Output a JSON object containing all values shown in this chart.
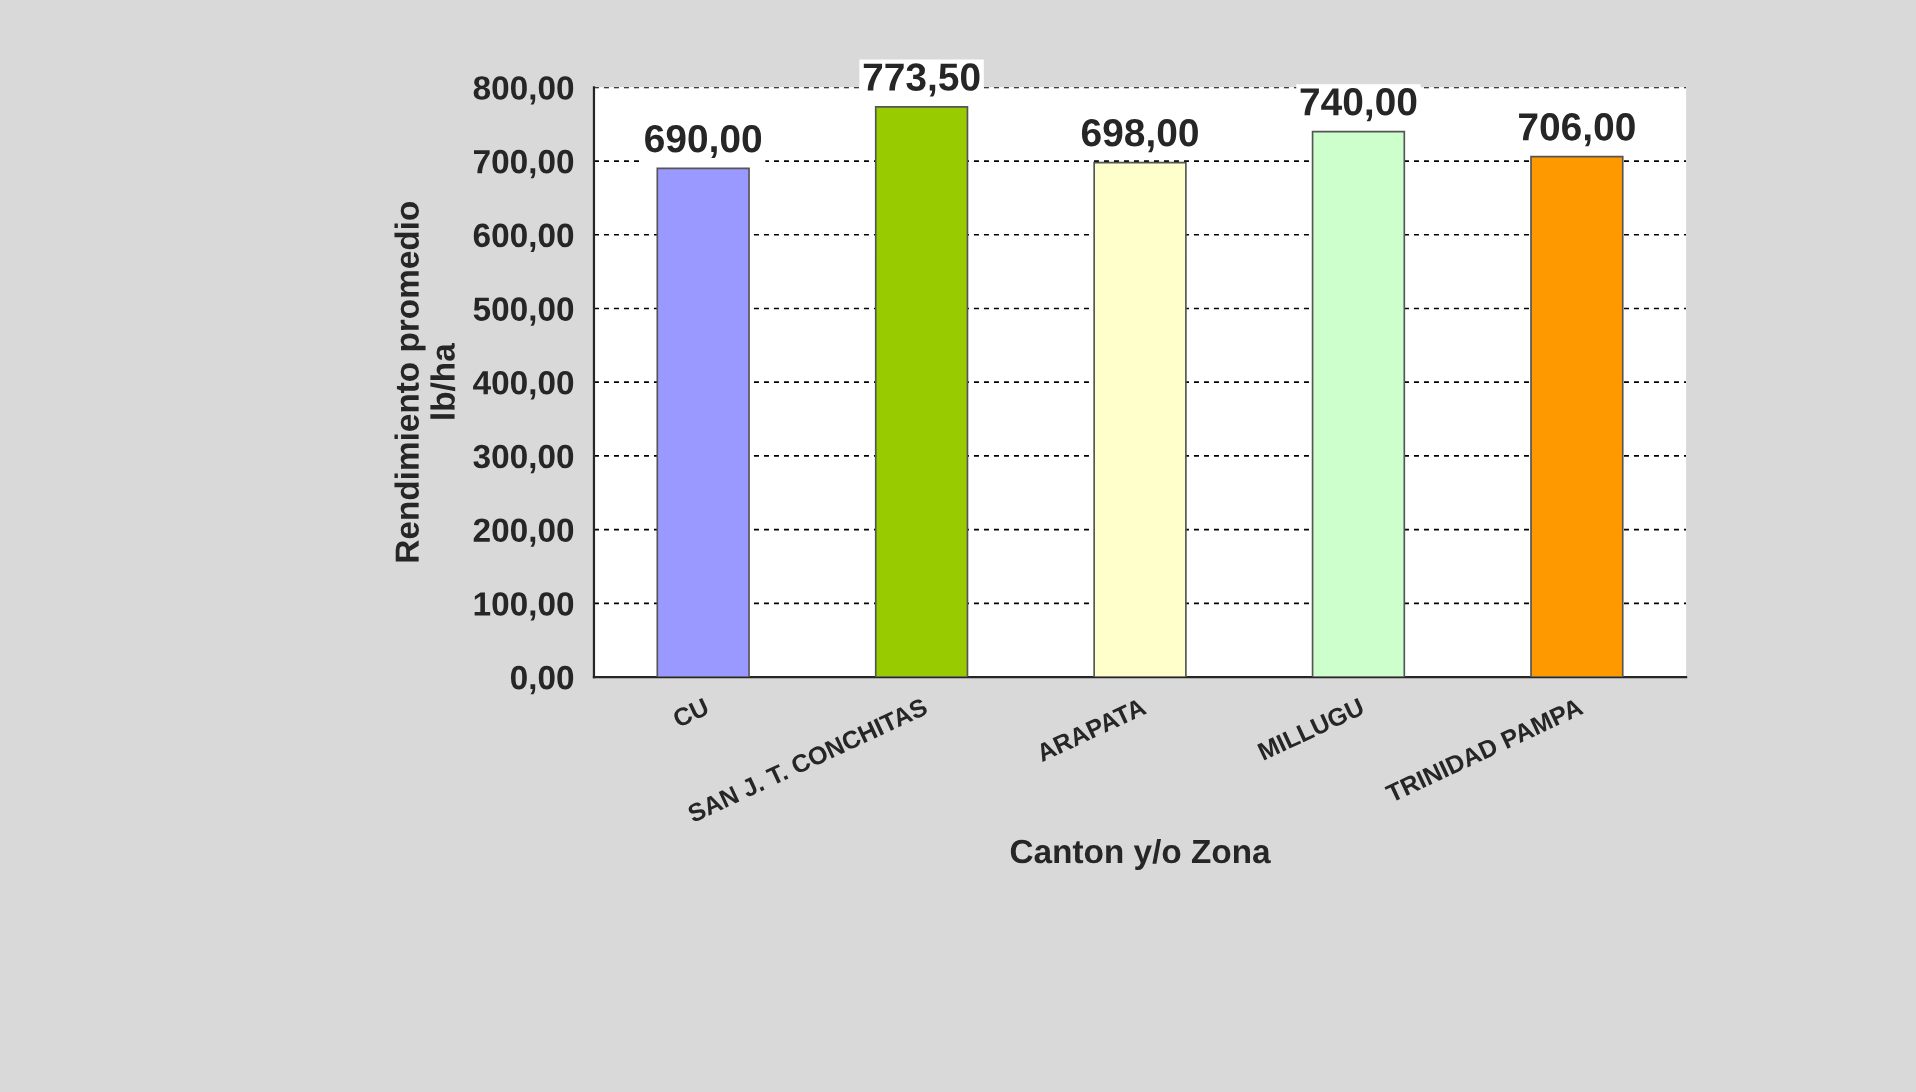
{
  "chart_data": {
    "type": "bar",
    "xlabel": "Canton y/o Zona",
    "ylabel": "Rendimiento promedio\nlb/ha",
    "categories": [
      "CU",
      "SAN J. T. CONCHITAS",
      "ARAPATA",
      "MILLUGU",
      "TRINIDAD PAMPA"
    ],
    "values": [
      690,
      773.5,
      698,
      740,
      706
    ],
    "colors": [
      "#9999ff",
      "#99cc00",
      "#ffffcc",
      "#ccffcc",
      "#ff9900"
    ],
    "value_labels": [
      "690,00",
      "773,50",
      "698,00",
      "740,00",
      "706,00"
    ],
    "ylim": [
      0,
      800
    ],
    "yticks": [
      {
        "value": 0,
        "label": "0,00"
      },
      {
        "value": 100,
        "label": "100,00"
      },
      {
        "value": 200,
        "label": "200,00"
      },
      {
        "value": 300,
        "label": "300,00"
      },
      {
        "value": 400,
        "label": "400,00"
      },
      {
        "value": 500,
        "label": "500,00"
      },
      {
        "value": 600,
        "label": "600,00"
      },
      {
        "value": 700,
        "label": "700,00"
      },
      {
        "value": 800,
        "label": "800,00"
      }
    ],
    "grid": "y",
    "legend": false
  }
}
